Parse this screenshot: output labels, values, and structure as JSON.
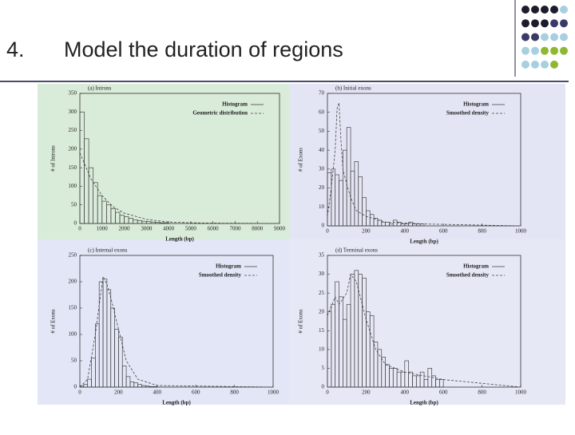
{
  "slide": {
    "number": "4.",
    "title": "Model the duration of regions"
  },
  "chart_data": [
    {
      "type": "histogram",
      "title": "(a) Introns",
      "xlabel": "Length (bp)",
      "ylabel": "# of Introns",
      "xlim": [
        0,
        9000
      ],
      "xticks": [
        0,
        1000,
        2000,
        3000,
        4000,
        5000,
        6000,
        7000,
        8000,
        9000
      ],
      "ylim": [
        0,
        350
      ],
      "yticks": [
        0,
        50,
        100,
        150,
        200,
        250,
        300,
        350
      ],
      "bins": [
        0,
        200,
        400,
        600,
        800,
        1000,
        1200,
        1400,
        1600,
        1800,
        2000,
        2200,
        2400,
        2600,
        2800,
        3000,
        3200,
        3400,
        3600,
        3800,
        4000
      ],
      "series": [
        {
          "name": "Histogram",
          "type": "histogram",
          "color": "#444444",
          "values": [
            300,
            228,
            150,
            110,
            75,
            60,
            50,
            40,
            30,
            22,
            18,
            14,
            10,
            8,
            6,
            5,
            4,
            3,
            2,
            2
          ]
        },
        {
          "name": "Geometric distribution",
          "type": "line",
          "color": "#444444",
          "x": [
            0,
            500,
            1000,
            1500,
            2000,
            3000,
            4000,
            5000,
            6000,
            9000
          ],
          "values": [
            190,
            120,
            75,
            45,
            28,
            11,
            4,
            2,
            1,
            0
          ]
        }
      ]
    },
    {
      "type": "histogram",
      "title": "(b) Initial exons",
      "xlabel": "Length (bp)",
      "ylabel": "# of Exons",
      "xlim": [
        0,
        1000
      ],
      "xticks": [
        0,
        200,
        400,
        600,
        800,
        1000
      ],
      "ylim": [
        0,
        70
      ],
      "yticks": [
        0,
        10,
        20,
        30,
        40,
        50,
        60,
        70
      ],
      "bins": [
        0,
        20,
        40,
        60,
        80,
        100,
        120,
        140,
        160,
        180,
        200,
        220,
        240,
        260,
        280,
        300,
        320,
        340,
        360,
        380,
        400,
        420,
        440,
        460,
        480,
        500
      ],
      "series": [
        {
          "name": "Histogram",
          "type": "histogram",
          "color": "#444444",
          "values": [
            28,
            30,
            27,
            24,
            40,
            52,
            29,
            34,
            26,
            15,
            8,
            6,
            4,
            3,
            2,
            2,
            1,
            3,
            2,
            1,
            1,
            2,
            1,
            1,
            1
          ]
        },
        {
          "name": "Smoothed density",
          "type": "line",
          "color": "#444444",
          "x": [
            0,
            20,
            40,
            50,
            60,
            70,
            80,
            100,
            120,
            150,
            200,
            300,
            500,
            1000
          ],
          "values": [
            5,
            20,
            40,
            62,
            65,
            45,
            30,
            22,
            15,
            8,
            5,
            2,
            1,
            0
          ]
        }
      ]
    },
    {
      "type": "histogram",
      "title": "(c) Internal exons",
      "xlabel": "Length (bp)",
      "ylabel": "# of Exons",
      "xlim": [
        0,
        1000
      ],
      "xticks": [
        0,
        200,
        400,
        600,
        800,
        1000
      ],
      "ylim": [
        0,
        250
      ],
      "yticks": [
        0,
        50,
        100,
        150,
        200,
        250
      ],
      "bins": [
        0,
        20,
        40,
        60,
        80,
        100,
        120,
        140,
        160,
        180,
        200,
        220,
        240,
        260,
        280,
        300,
        320,
        340,
        360,
        380,
        400
      ],
      "series": [
        {
          "name": "Histogram",
          "type": "histogram",
          "color": "#444444",
          "values": [
            2,
            5,
            15,
            55,
            120,
            200,
            205,
            185,
            150,
            110,
            95,
            40,
            20,
            10,
            8,
            5,
            3,
            2,
            1,
            1
          ]
        },
        {
          "name": "Smoothed density",
          "type": "line",
          "color": "#444444",
          "x": [
            0,
            40,
            80,
            120,
            140,
            160,
            200,
            240,
            300,
            400,
            1000
          ],
          "values": [
            0,
            15,
            100,
            210,
            195,
            170,
            110,
            50,
            15,
            3,
            0
          ]
        }
      ]
    },
    {
      "type": "histogram",
      "title": "(d) Terminal exons",
      "xlabel": "Length (bp)",
      "ylabel": "# of Exons",
      "xlim": [
        0,
        1000
      ],
      "xticks": [
        0,
        200,
        400,
        600,
        800,
        1000
      ],
      "ylim": [
        0,
        35
      ],
      "yticks": [
        0,
        5,
        10,
        15,
        20,
        25,
        30,
        35
      ],
      "bins": [
        0,
        20,
        40,
        60,
        80,
        100,
        120,
        140,
        160,
        180,
        200,
        220,
        240,
        260,
        280,
        300,
        320,
        340,
        360,
        380,
        400,
        420,
        440,
        460,
        480,
        500,
        520,
        540,
        560,
        580,
        600
      ],
      "series": [
        {
          "name": "Histogram",
          "type": "histogram",
          "color": "#444444",
          "values": [
            20,
            22,
            28,
            24,
            18,
            22,
            30,
            31,
            30,
            29,
            20,
            19,
            12,
            10,
            8,
            6,
            5,
            5,
            4,
            4,
            7,
            4,
            3,
            3,
            4,
            2,
            5,
            3,
            2,
            2
          ]
        },
        {
          "name": "Smoothed density",
          "type": "line",
          "color": "#444444",
          "x": [
            0,
            40,
            60,
            100,
            120,
            150,
            200,
            250,
            300,
            400,
            500,
            600,
            800,
            1000
          ],
          "values": [
            19,
            24,
            22,
            25,
            30,
            28,
            18,
            10,
            6,
            4,
            3,
            2,
            1,
            0
          ]
        }
      ]
    }
  ]
}
